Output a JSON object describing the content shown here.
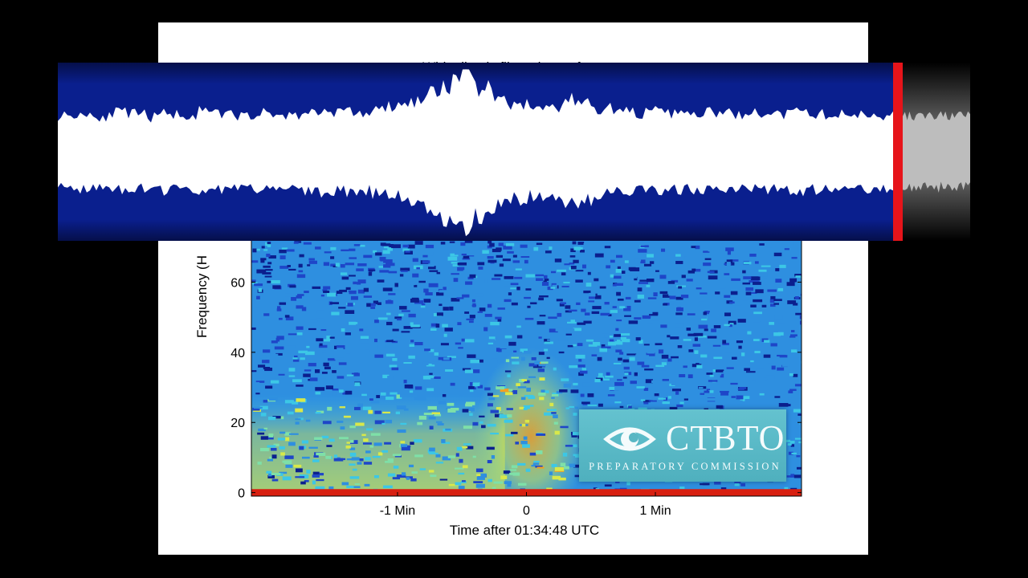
{
  "figure": {
    "title": "White line is filtered waveform"
  },
  "logo": {
    "name": "CTBTO",
    "subtitle": "PREPARATORY COMMISSION"
  },
  "chart_data": [
    {
      "type": "heatmap",
      "title": "White line is filtered waveform",
      "xlabel": "Time after 01:34:48 UTC",
      "ylabel": "Frequency (H",
      "x_ticks": [
        {
          "value": -60,
          "label": "-1 Min"
        },
        {
          "value": 0,
          "label": "0"
        },
        {
          "value": 60,
          "label": "1 Min"
        }
      ],
      "y_ticks": [
        {
          "value": 0,
          "label": "0"
        },
        {
          "value": 20,
          "label": "20"
        },
        {
          "value": 40,
          "label": "40"
        },
        {
          "value": 60,
          "label": "60"
        }
      ],
      "xlim": [
        -128,
        128
      ],
      "ylim": [
        -1,
        72
      ],
      "colormap": [
        "#0b1f8e",
        "#1e46c8",
        "#2e8fe0",
        "#3cc7e6",
        "#7ee0a8",
        "#d8e84a",
        "#f4a020",
        "#d81f10"
      ],
      "intensity_profile": [
        {
          "freq_max": 1,
          "time_range": [
            -128,
            128
          ],
          "level": "high"
        },
        {
          "freq_max": 28,
          "time_range": [
            -128,
            -10
          ],
          "level": "medium"
        },
        {
          "freq_max": 40,
          "time_range": [
            -5,
            8
          ],
          "level": "medium-high"
        },
        {
          "freq_max": 72,
          "time_range": [
            -128,
            128
          ],
          "level": "low"
        }
      ],
      "grid": false,
      "colors": {
        "red_marker": "#e6141a"
      }
    },
    {
      "type": "area",
      "title": "White line is filtered waveform",
      "x_range": [
        -128,
        128
      ],
      "envelope": [
        0.42,
        0.44,
        0.41,
        0.45,
        0.43,
        0.4,
        0.44,
        0.42,
        0.46,
        0.43,
        0.41,
        0.44,
        0.43,
        0.42,
        0.45,
        0.47,
        0.46,
        0.44,
        0.48,
        0.52,
        0.58,
        0.66,
        0.78,
        0.95,
        0.74,
        0.62,
        0.55,
        0.5,
        0.52,
        0.6,
        0.56,
        0.5,
        0.47,
        0.45,
        0.46,
        0.44,
        0.43,
        0.45,
        0.44,
        0.42,
        0.44,
        0.43,
        0.45,
        0.44,
        0.42,
        0.43,
        0.44,
        0.42
      ],
      "colors": {
        "background": "#0a1f8e",
        "waveform": "#ffffff",
        "marker": "#e6141a"
      }
    }
  ]
}
